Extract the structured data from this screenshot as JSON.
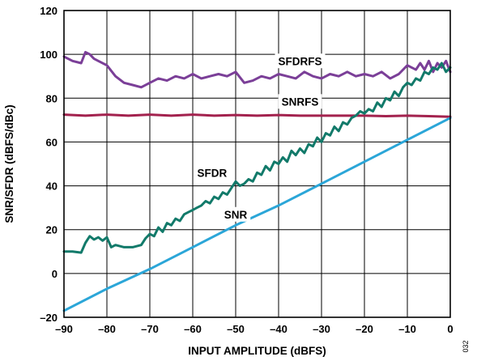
{
  "figure_id": "032",
  "chart_data": {
    "type": "line",
    "title": "",
    "xlabel": "INPUT AMPLITUDE (dBFS)",
    "ylabel": "SNR/SFDR (dBFS/dBc)",
    "xlim": [
      -90,
      0
    ],
    "ylim": [
      -20,
      120
    ],
    "xticks": [
      -90,
      -80,
      -70,
      -60,
      -50,
      -40,
      -30,
      -20,
      -10,
      0
    ],
    "yticks": [
      -20,
      0,
      20,
      40,
      60,
      80,
      100,
      120
    ],
    "xtick_labels": [
      "–90",
      "–80",
      "–70",
      "–60",
      "–50",
      "–40",
      "–30",
      "–20",
      "–10",
      "0"
    ],
    "ytick_labels": [
      "–20",
      "0",
      "20",
      "40",
      "60",
      "80",
      "100",
      "120"
    ],
    "grid": true,
    "legend": "none",
    "series": [
      {
        "name": "SFDRFS",
        "color": "#7b3f98",
        "x": [
          -90,
          -88,
          -86,
          -85,
          -84,
          -83,
          -82,
          -80,
          -78,
          -76,
          -74,
          -72,
          -70,
          -68,
          -66,
          -64,
          -62,
          -60,
          -58,
          -56,
          -54,
          -52,
          -50,
          -48,
          -46,
          -44,
          -42,
          -40,
          -38,
          -36,
          -34,
          -32,
          -30,
          -28,
          -26,
          -24,
          -22,
          -20,
          -18,
          -16,
          -14,
          -12,
          -10,
          -8,
          -7,
          -6,
          -5,
          -4,
          -3,
          -2,
          -1,
          0
        ],
        "y": [
          99,
          97,
          96,
          101,
          100,
          98,
          97,
          95,
          90,
          87,
          86,
          85,
          87,
          89,
          88,
          90,
          89,
          91,
          89,
          90,
          91,
          90,
          92,
          87,
          88,
          90,
          89,
          91,
          90,
          89,
          92,
          90,
          89,
          91,
          90,
          92,
          90,
          91,
          90,
          92,
          89,
          91,
          95,
          93,
          96,
          93,
          97,
          92,
          96,
          94,
          97,
          92
        ]
      },
      {
        "name": "SNRFS",
        "color": "#a3224e",
        "x": [
          -90,
          -85,
          -80,
          -75,
          -70,
          -65,
          -60,
          -55,
          -50,
          -45,
          -40,
          -35,
          -30,
          -25,
          -20,
          -15,
          -10,
          -5,
          0
        ],
        "y": [
          72.5,
          72,
          72.5,
          72,
          72.5,
          72,
          72.5,
          72,
          72.3,
          72,
          72.3,
          72,
          72,
          72,
          72,
          71.8,
          72,
          71.8,
          71.5
        ]
      },
      {
        "name": "SFDR",
        "color": "#127a6a",
        "x": [
          -90,
          -88,
          -86,
          -85,
          -84,
          -83,
          -82,
          -81,
          -80,
          -79,
          -78,
          -76,
          -74,
          -72,
          -71,
          -70,
          -69,
          -68,
          -67,
          -66,
          -65,
          -64,
          -63,
          -62,
          -61,
          -60,
          -59,
          -58,
          -57,
          -56,
          -55,
          -54,
          -53,
          -52,
          -51,
          -50,
          -49,
          -48,
          -47,
          -46,
          -45,
          -44,
          -43,
          -42,
          -41,
          -40,
          -39,
          -38,
          -37,
          -36,
          -35,
          -34,
          -33,
          -32,
          -31,
          -30,
          -29,
          -28,
          -27,
          -26,
          -25,
          -24,
          -23,
          -22,
          -21,
          -20,
          -19,
          -18,
          -17,
          -16,
          -15,
          -14,
          -13,
          -12,
          -11,
          -10,
          -9,
          -8,
          -7,
          -6,
          -5,
          -4,
          -3,
          -2,
          -1,
          0
        ],
        "y": [
          10,
          10,
          9.5,
          14,
          17,
          15.5,
          16.5,
          15,
          16.5,
          12,
          13,
          12,
          12,
          13,
          16,
          18,
          17,
          21,
          19,
          23,
          22,
          25,
          24,
          27,
          28,
          29,
          30,
          31,
          33,
          32,
          35,
          34,
          37,
          36,
          39,
          42,
          40,
          41,
          43,
          42,
          46,
          45,
          49,
          47,
          51,
          50,
          53,
          51,
          56,
          54,
          57,
          55,
          59,
          58,
          62,
          60,
          64,
          63,
          67,
          65,
          69,
          68,
          71,
          72,
          74,
          73,
          75,
          74,
          78,
          76,
          80,
          79,
          83,
          81,
          85,
          87,
          86,
          89,
          88,
          92,
          91,
          94,
          93,
          96,
          92,
          94
        ]
      },
      {
        "name": "SNR",
        "color": "#2ba6d8",
        "x": [
          -90,
          -80,
          -70,
          -60,
          -50,
          -40,
          -30,
          -20,
          -10,
          0
        ],
        "y": [
          -17,
          -7,
          2,
          12,
          22,
          31,
          41,
          51,
          61,
          71
        ]
      }
    ],
    "annotations": [
      {
        "text": "SFDRFS",
        "series": "SFDRFS"
      },
      {
        "text": "SNRFS",
        "series": "SNRFS"
      },
      {
        "text": "SFDR",
        "series": "SFDR"
      },
      {
        "text": "SNR",
        "series": "SNR"
      }
    ]
  }
}
